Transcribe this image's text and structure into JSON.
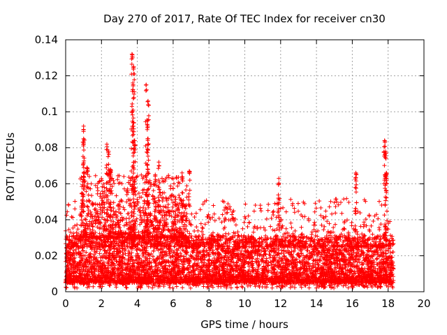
{
  "chart_data": {
    "type": "scatter",
    "title": "Day 270 of 2017, Rate Of TEC Index for receiver cn30",
    "xlabel": "GPS time / hours",
    "ylabel": "ROTI / TECUs",
    "xlim": [
      0,
      20
    ],
    "ylim": [
      0,
      0.14
    ],
    "xticks": [
      "0",
      "2",
      "4",
      "6",
      "8",
      "10",
      "12",
      "14",
      "16",
      "18",
      "20"
    ],
    "yticks": [
      "0",
      "0.02",
      "0.04",
      "0.06",
      "0.08",
      "0.1",
      "0.12",
      "0.14"
    ],
    "grid": true,
    "marker": "+",
    "color": "#ff0000",
    "data_extent_hours": [
      0,
      18.3
    ],
    "baseline_range": [
      0.005,
      0.03
    ],
    "peaks": [
      {
        "x": 1.0,
        "y": 0.092
      },
      {
        "x": 1.0,
        "y": 0.085
      },
      {
        "x": 1.2,
        "y": 0.069
      },
      {
        "x": 2.3,
        "y": 0.082
      },
      {
        "x": 2.4,
        "y": 0.078
      },
      {
        "x": 2.5,
        "y": 0.068
      },
      {
        "x": 3.7,
        "y": 0.132
      },
      {
        "x": 3.8,
        "y": 0.125
      },
      {
        "x": 3.75,
        "y": 0.116
      },
      {
        "x": 3.7,
        "y": 0.103
      },
      {
        "x": 3.8,
        "y": 0.094
      },
      {
        "x": 3.85,
        "y": 0.084
      },
      {
        "x": 4.5,
        "y": 0.115
      },
      {
        "x": 4.6,
        "y": 0.106
      },
      {
        "x": 4.55,
        "y": 0.093
      },
      {
        "x": 4.6,
        "y": 0.085
      },
      {
        "x": 5.2,
        "y": 0.072
      },
      {
        "x": 5.0,
        "y": 0.065
      },
      {
        "x": 6.5,
        "y": 0.066
      },
      {
        "x": 6.9,
        "y": 0.067
      },
      {
        "x": 11.9,
        "y": 0.063
      },
      {
        "x": 16.2,
        "y": 0.066
      },
      {
        "x": 17.8,
        "y": 0.084
      },
      {
        "x": 17.85,
        "y": 0.078
      },
      {
        "x": 17.9,
        "y": 0.066
      }
    ]
  }
}
